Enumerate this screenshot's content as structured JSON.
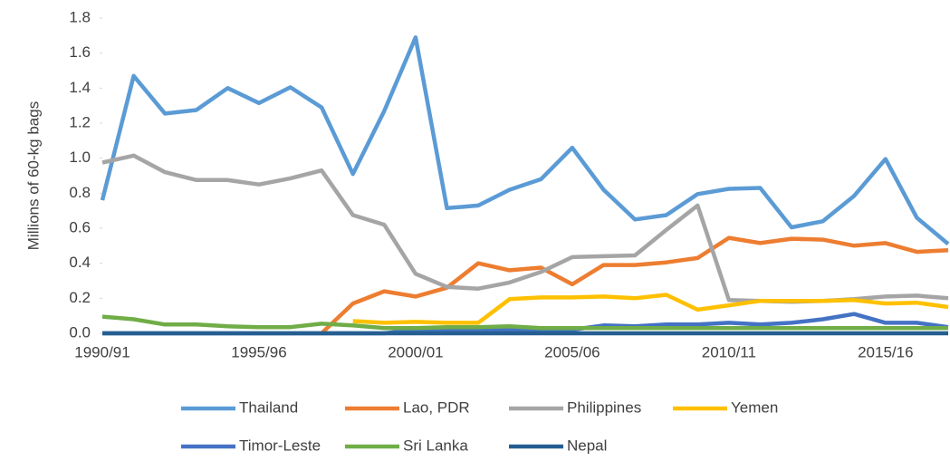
{
  "chart_data": {
    "type": "line",
    "y_label": "Millions of 60-kg bags",
    "categories": [
      "1990/91",
      null,
      null,
      null,
      null,
      "1995/96",
      null,
      null,
      null,
      null,
      "2000/01",
      null,
      null,
      null,
      null,
      "2005/06",
      null,
      null,
      null,
      null,
      "2010/11",
      null,
      null,
      null,
      null,
      "2015/16",
      null,
      null
    ],
    "ylim": [
      0,
      1.8
    ],
    "yticks": [
      {
        "value": 0,
        "label": "0.0"
      },
      0.2,
      0.4,
      0.6,
      0.8,
      {
        "value": 1,
        "label": "1.0"
      },
      1.2,
      1.4,
      1.6,
      1.8
    ],
    "legend": "bottom",
    "series": [
      {
        "name": "Thailand",
        "color": "#5b9bd5",
        "values": [
          0.76,
          1.47,
          1.255,
          1.275,
          1.4,
          1.315,
          1.405,
          1.29,
          0.91,
          1.27,
          1.69,
          0.715,
          0.73,
          0.82,
          0.88,
          1.06,
          0.82,
          0.65,
          0.675,
          0.795,
          0.825,
          0.83,
          0.605,
          0.64,
          0.785,
          0.995,
          0.66,
          0.51
        ]
      },
      {
        "name": "Lao, PDR",
        "color": "#ed7d31",
        "values": [
          null,
          null,
          null,
          null,
          null,
          null,
          null,
          0,
          0.17,
          0.24,
          0.21,
          0.26,
          0.4,
          0.36,
          0.375,
          0.28,
          0.39,
          0.39,
          0.405,
          0.43,
          0.545,
          0.515,
          0.54,
          0.535,
          0.5,
          0.515,
          0.465,
          0.475
        ]
      },
      {
        "name": "Philippines",
        "color": "#a5a5a5",
        "values": [
          0.975,
          1.015,
          0.92,
          0.875,
          0.875,
          0.85,
          0.885,
          0.93,
          0.675,
          0.62,
          0.34,
          0.265,
          0.255,
          0.29,
          0.35,
          0.435,
          0.44,
          0.445,
          0.59,
          0.73,
          0.19,
          0.185,
          0.18,
          0.185,
          0.195,
          0.21,
          0.215,
          0.2
        ]
      },
      {
        "name": "Yemen",
        "color": "#ffc000",
        "values": [
          null,
          null,
          null,
          null,
          null,
          null,
          null,
          null,
          0.07,
          0.06,
          0.065,
          0.06,
          0.06,
          0.195,
          0.205,
          0.205,
          0.21,
          0.2,
          0.22,
          0.135,
          0.16,
          0.185,
          0.185,
          0.185,
          0.19,
          0.17,
          0.175,
          0.15
        ]
      },
      {
        "name": "Timor-Leste",
        "color": "#4472c4",
        "values": [
          0,
          0,
          0,
          0,
          0,
          0,
          0,
          0,
          0,
          0,
          0.02,
          0.02,
          0.02,
          0.02,
          0.02,
          0.02,
          0.045,
          0.04,
          0.05,
          0.05,
          0.06,
          0.05,
          0.06,
          0.08,
          0.11,
          0.06,
          0.06,
          0.035
        ]
      },
      {
        "name": "Sri Lanka",
        "color": "#70ad47",
        "values": [
          0.095,
          0.08,
          0.05,
          0.05,
          0.04,
          0.035,
          0.035,
          0.055,
          0.045,
          0.03,
          0.03,
          0.035,
          0.035,
          0.04,
          0.03,
          0.03,
          0.03,
          0.03,
          0.03,
          0.03,
          0.03,
          0.03,
          0.03,
          0.03,
          0.03,
          0.03,
          0.03,
          0.03
        ]
      },
      {
        "name": "Nepal",
        "color": "#255e91",
        "values": [
          0,
          0,
          0,
          0,
          0,
          0,
          0,
          0,
          0,
          0,
          0,
          0,
          0,
          0,
          0,
          0,
          0,
          0,
          0,
          0,
          0,
          0,
          0,
          0,
          0,
          0,
          0,
          0
        ]
      }
    ]
  }
}
